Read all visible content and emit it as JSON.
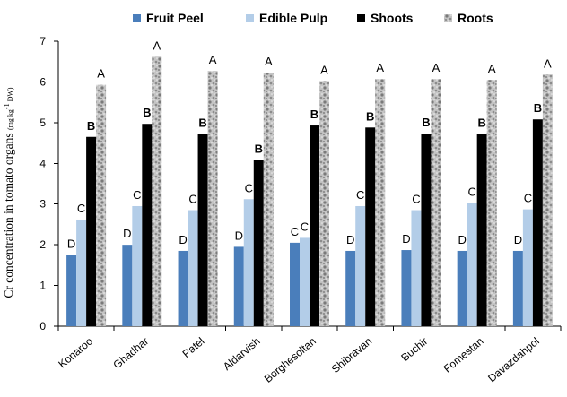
{
  "chart_data": {
    "type": "bar",
    "ylabel": "Cr concentration in tomato organs (mg kg-1 DW)",
    "ylabel_parts": {
      "main": "Cr concentration in tomato organs ",
      "unit": "(mg kg",
      "exp": "-1",
      "unit_end": " DW)"
    },
    "ylim": [
      0,
      7
    ],
    "yticks": [
      "0",
      "1",
      "2",
      "3",
      "4",
      "5",
      "6",
      "7"
    ],
    "legend_position": "top",
    "grid": false,
    "categories": [
      "Konaroo",
      "Ghadhar",
      "Patel",
      "Aldarvish",
      "Borghesoltan",
      "Shibravan",
      "Buchir",
      "Fomestan",
      "Davazdahpol"
    ],
    "series": [
      {
        "name": "Fruit Peel",
        "color": "#4a7ebb",
        "values": [
          1.75,
          2.0,
          1.85,
          1.95,
          2.05,
          1.85,
          1.87,
          1.85,
          1.85
        ],
        "letters": [
          "D",
          "D",
          "D",
          "D",
          "C",
          "D",
          "D",
          "D",
          "D"
        ]
      },
      {
        "name": "Edible Pulp",
        "color": "#b3cde8",
        "values": [
          2.62,
          2.95,
          2.85,
          3.12,
          2.17,
          2.95,
          2.85,
          3.03,
          2.87
        ],
        "letters": [
          "C",
          "C",
          "C",
          "C",
          "C",
          "C",
          "C",
          "C",
          "C"
        ]
      },
      {
        "name": "Shoots",
        "color": "#000000",
        "values": [
          4.65,
          4.97,
          4.72,
          4.08,
          4.93,
          4.88,
          4.73,
          4.72,
          5.08
        ],
        "letters": [
          "B",
          "B",
          "B",
          "B",
          "B",
          "B",
          "B",
          "B",
          "B"
        ]
      },
      {
        "name": "Roots",
        "color": "#b0b0b0",
        "pattern": "granite",
        "values": [
          5.93,
          6.62,
          6.27,
          6.23,
          6.02,
          6.07,
          6.07,
          6.05,
          6.18
        ],
        "letters": [
          "A",
          "A",
          "A",
          "A",
          "A",
          "A",
          "A",
          "A",
          "A"
        ]
      }
    ]
  }
}
